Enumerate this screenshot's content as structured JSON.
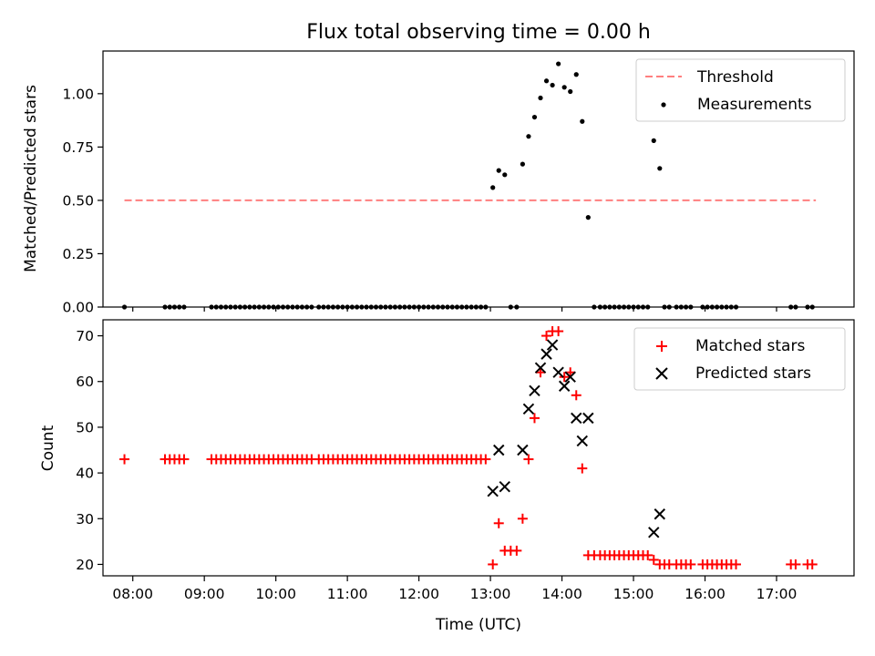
{
  "chart_data": [
    {
      "type": "scatter",
      "title": "Flux total observing time = 0.00 h",
      "xlabel": "",
      "ylabel": "Matched/Predicted stars",
      "ylim": [
        0,
        1.2
      ],
      "yticks": [
        "0.00",
        "0.25",
        "0.50",
        "0.75",
        "1.00"
      ],
      "ytick_values": [
        0,
        0.25,
        0.5,
        0.75,
        1.0
      ],
      "xlim": [
        "07:35",
        "18:05"
      ],
      "legend_position": "top-right",
      "threshold": {
        "name": "Threshold",
        "value": 0.5,
        "x_start": "07:53",
        "x_end": "17:33",
        "color": "#ff7f7f",
        "style": "dashed"
      },
      "series": [
        {
          "name": "Measurements",
          "color": "#000000",
          "marker": "dot",
          "x": [
            "07:53",
            "08:27",
            "08:31",
            "08:35",
            "08:39",
            "08:43",
            "09:06",
            "09:10",
            "09:14",
            "09:18",
            "09:22",
            "09:26",
            "09:30",
            "09:34",
            "09:38",
            "09:42",
            "09:46",
            "09:50",
            "09:54",
            "09:58",
            "10:02",
            "10:06",
            "10:10",
            "10:14",
            "10:18",
            "10:22",
            "10:26",
            "10:30",
            "10:36",
            "10:40",
            "10:44",
            "10:48",
            "10:52",
            "10:56",
            "11:00",
            "11:04",
            "11:08",
            "11:12",
            "11:16",
            "11:20",
            "11:24",
            "11:28",
            "11:32",
            "11:36",
            "11:40",
            "11:44",
            "11:48",
            "11:52",
            "11:56",
            "12:00",
            "12:04",
            "12:08",
            "12:12",
            "12:16",
            "12:20",
            "12:24",
            "12:28",
            "12:32",
            "12:36",
            "12:40",
            "12:44",
            "12:48",
            "12:52",
            "12:56",
            "13:02",
            "13:07",
            "13:12",
            "13:17",
            "13:22",
            "13:27",
            "13:32",
            "13:37",
            "13:42",
            "13:47",
            "13:52",
            "13:57",
            "14:02",
            "14:07",
            "14:12",
            "14:17",
            "14:22",
            "14:27",
            "14:32",
            "14:36",
            "14:40",
            "14:44",
            "14:48",
            "14:52",
            "14:56",
            "15:00",
            "15:04",
            "15:08",
            "15:12",
            "15:17",
            "15:22",
            "15:26",
            "15:30",
            "15:36",
            "15:40",
            "15:44",
            "15:48",
            "15:58",
            "16:02",
            "16:06",
            "16:10",
            "16:14",
            "16:18",
            "16:22",
            "16:26",
            "17:12",
            "17:16",
            "17:26",
            "17:30"
          ],
          "y": [
            0,
            0,
            0,
            0,
            0,
            0,
            0,
            0,
            0,
            0,
            0,
            0,
            0,
            0,
            0,
            0,
            0,
            0,
            0,
            0,
            0,
            0,
            0,
            0,
            0,
            0,
            0,
            0,
            0,
            0,
            0,
            0,
            0,
            0,
            0,
            0,
            0,
            0,
            0,
            0,
            0,
            0,
            0,
            0,
            0,
            0,
            0,
            0,
            0,
            0,
            0,
            0,
            0,
            0,
            0,
            0,
            0,
            0,
            0,
            0,
            0,
            0,
            0,
            0,
            0.56,
            0.64,
            0.62,
            0,
            0,
            0.67,
            0.8,
            0.89,
            0.98,
            1.06,
            1.04,
            1.14,
            1.03,
            1.01,
            1.09,
            0.87,
            0.42,
            0,
            0,
            0,
            0,
            0,
            0,
            0,
            0,
            0,
            0,
            0,
            0,
            0.78,
            0.65,
            0,
            0,
            0,
            0,
            0,
            0,
            0,
            0,
            0,
            0,
            0,
            0,
            0,
            0,
            0,
            0,
            0,
            0
          ]
        }
      ]
    },
    {
      "type": "scatter",
      "title": "",
      "xlabel": "Time (UTC)",
      "ylabel": "Count",
      "ylim": [
        17.5,
        73.5
      ],
      "yticks": [
        "20",
        "30",
        "40",
        "50",
        "60",
        "70"
      ],
      "ytick_values": [
        20,
        30,
        40,
        50,
        60,
        70
      ],
      "xticks": [
        "08:00",
        "09:00",
        "10:00",
        "11:00",
        "12:00",
        "13:00",
        "14:00",
        "15:00",
        "16:00",
        "17:00"
      ],
      "xlim": [
        "07:35",
        "18:05"
      ],
      "legend_position": "top-right",
      "series": [
        {
          "name": "Matched stars",
          "color": "#ff0000",
          "marker": "plus",
          "x": [
            "07:53",
            "08:27",
            "08:31",
            "08:35",
            "08:39",
            "08:43",
            "09:06",
            "09:10",
            "09:14",
            "09:18",
            "09:22",
            "09:26",
            "09:30",
            "09:34",
            "09:38",
            "09:42",
            "09:46",
            "09:50",
            "09:54",
            "09:58",
            "10:02",
            "10:06",
            "10:10",
            "10:14",
            "10:18",
            "10:22",
            "10:26",
            "10:30",
            "10:36",
            "10:40",
            "10:44",
            "10:48",
            "10:52",
            "10:56",
            "11:00",
            "11:04",
            "11:08",
            "11:12",
            "11:16",
            "11:20",
            "11:24",
            "11:28",
            "11:32",
            "11:36",
            "11:40",
            "11:44",
            "11:48",
            "11:52",
            "11:56",
            "12:00",
            "12:04",
            "12:08",
            "12:12",
            "12:16",
            "12:20",
            "12:24",
            "12:28",
            "12:32",
            "12:36",
            "12:40",
            "12:44",
            "12:48",
            "12:52",
            "12:56",
            "13:02",
            "13:07",
            "13:12",
            "13:17",
            "13:22",
            "13:27",
            "13:32",
            "13:37",
            "13:42",
            "13:47",
            "13:52",
            "13:57",
            "14:02",
            "14:07",
            "14:12",
            "14:17",
            "14:22",
            "14:27",
            "14:32",
            "14:36",
            "14:40",
            "14:44",
            "14:48",
            "14:52",
            "14:56",
            "15:00",
            "15:04",
            "15:08",
            "15:12",
            "15:17",
            "15:22",
            "15:26",
            "15:30",
            "15:36",
            "15:40",
            "15:44",
            "15:48",
            "15:58",
            "16:02",
            "16:06",
            "16:10",
            "16:14",
            "16:18",
            "16:22",
            "16:26",
            "17:12",
            "17:16",
            "17:26",
            "17:30"
          ],
          "y": [
            43,
            43,
            43,
            43,
            43,
            43,
            43,
            43,
            43,
            43,
            43,
            43,
            43,
            43,
            43,
            43,
            43,
            43,
            43,
            43,
            43,
            43,
            43,
            43,
            43,
            43,
            43,
            43,
            43,
            43,
            43,
            43,
            43,
            43,
            43,
            43,
            43,
            43,
            43,
            43,
            43,
            43,
            43,
            43,
            43,
            43,
            43,
            43,
            43,
            43,
            43,
            43,
            43,
            43,
            43,
            43,
            43,
            43,
            43,
            43,
            43,
            43,
            43,
            43,
            20,
            29,
            23,
            23,
            23,
            30,
            43,
            52,
            62,
            70,
            71,
            71,
            61,
            62,
            57,
            41,
            22,
            22,
            22,
            22,
            22,
            22,
            22,
            22,
            22,
            22,
            22,
            22,
            22,
            21,
            20,
            20,
            20,
            20,
            20,
            20,
            20,
            20,
            20,
            20,
            20,
            20,
            20,
            20,
            20,
            20,
            20,
            20,
            20
          ]
        },
        {
          "name": "Predicted stars",
          "color": "#000000",
          "marker": "x",
          "x": [
            "13:02",
            "13:07",
            "13:12",
            "13:27",
            "13:32",
            "13:37",
            "13:42",
            "13:47",
            "13:52",
            "13:57",
            "14:02",
            "14:07",
            "14:12",
            "14:17",
            "14:22",
            "15:17",
            "15:22"
          ],
          "y": [
            36,
            45,
            37,
            45,
            54,
            58,
            63,
            66,
            68,
            62,
            59,
            61,
            52,
            47,
            52,
            27,
            31
          ]
        }
      ]
    }
  ]
}
